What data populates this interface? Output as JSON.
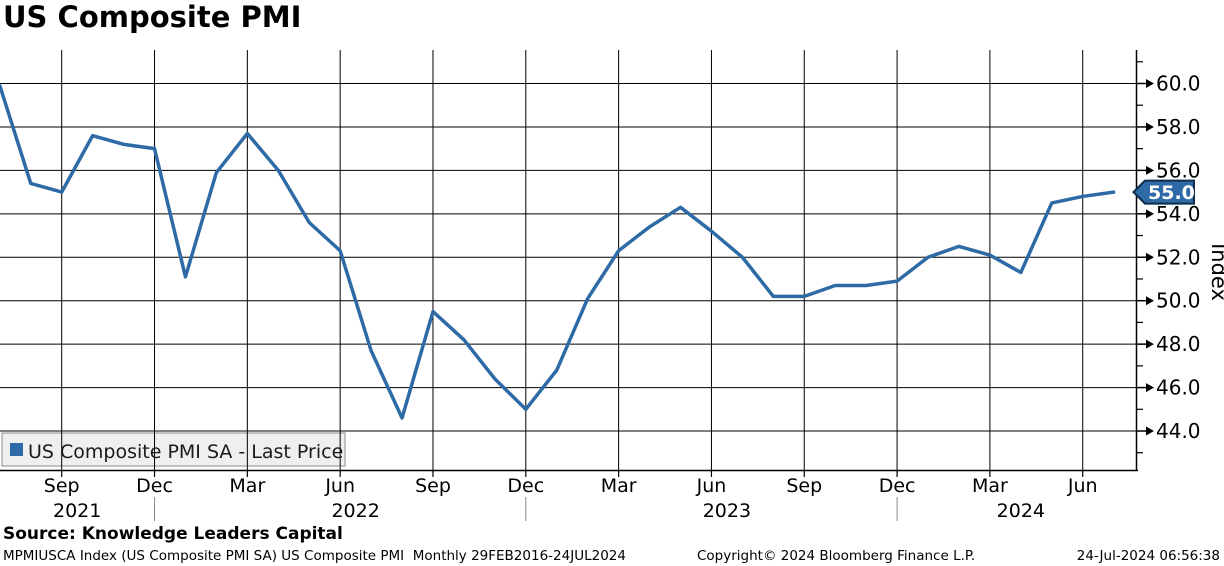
{
  "header": {
    "title": "US Composite PMI"
  },
  "legend": {
    "label": "US Composite PMI SA - Last Price"
  },
  "axis": {
    "ylabel": "Index"
  },
  "badge": {
    "value": "55.0"
  },
  "footer": {
    "source": "Source: Knowledge Leaders Capital",
    "meta": "MPMIUSCA Index (US Composite PMI SA) US Composite PMI  Monthly 29FEB2016-24JUL2024",
    "copyright": "Copyright© 2024 Bloomberg Finance L.P.",
    "timestamp": "24-Jul-2024 06:56:38"
  },
  "colors": {
    "line": "#2e6ba6",
    "badge_fill": "#2e6ba6",
    "badge_border": "#0c2d4d",
    "badge_text": "#ffffff",
    "grid": "#000000",
    "legend_bg": "#efeff0",
    "legend_border": "#8a8a8a",
    "year_separator": "#8a8a8a"
  },
  "chart_data": {
    "type": "line",
    "title": "US Composite PMI",
    "xlabel": "",
    "ylabel": "Index",
    "grid": true,
    "legend_position": "bottom-left",
    "ylim": [
      42.2,
      61.6
    ],
    "y_major_ticks": [
      44.0,
      46.0,
      48.0,
      50.0,
      52.0,
      54.0,
      56.0,
      58.0,
      60.0
    ],
    "x_tick_label_months": [
      "Mar",
      "Jun",
      "Sep",
      "Dec"
    ],
    "last_price_label": "55.0",
    "series": [
      {
        "name": "US Composite PMI SA - Last Price",
        "color": "#2e6ba6",
        "x": [
          "Jul 2021",
          "Aug 2021",
          "Sep 2021",
          "Oct 2021",
          "Nov 2021",
          "Dec 2021",
          "Jan 2022",
          "Feb 2022",
          "Mar 2022",
          "Apr 2022",
          "May 2022",
          "Jun 2022",
          "Jul 2022",
          "Aug 2022",
          "Sep 2022",
          "Oct 2022",
          "Nov 2022",
          "Dec 2022",
          "Jan 2023",
          "Feb 2023",
          "Mar 2023",
          "Apr 2023",
          "May 2023",
          "Jun 2023",
          "Jul 2023",
          "Aug 2023",
          "Sep 2023",
          "Oct 2023",
          "Nov 2023",
          "Dec 2023",
          "Jan 2024",
          "Feb 2024",
          "Mar 2024",
          "Apr 2024",
          "May 2024",
          "Jun 2024",
          "Jul 2024"
        ],
        "values": [
          59.9,
          55.4,
          55.0,
          57.6,
          57.2,
          57.0,
          51.1,
          55.9,
          57.7,
          56.0,
          53.6,
          52.3,
          47.7,
          44.6,
          49.5,
          48.2,
          46.4,
          45.0,
          46.8,
          50.1,
          52.3,
          53.4,
          54.3,
          53.2,
          52.0,
          50.2,
          50.2,
          50.7,
          50.7,
          50.9,
          52.0,
          52.5,
          52.1,
          51.3,
          54.5,
          54.8,
          55.0
        ]
      }
    ]
  }
}
